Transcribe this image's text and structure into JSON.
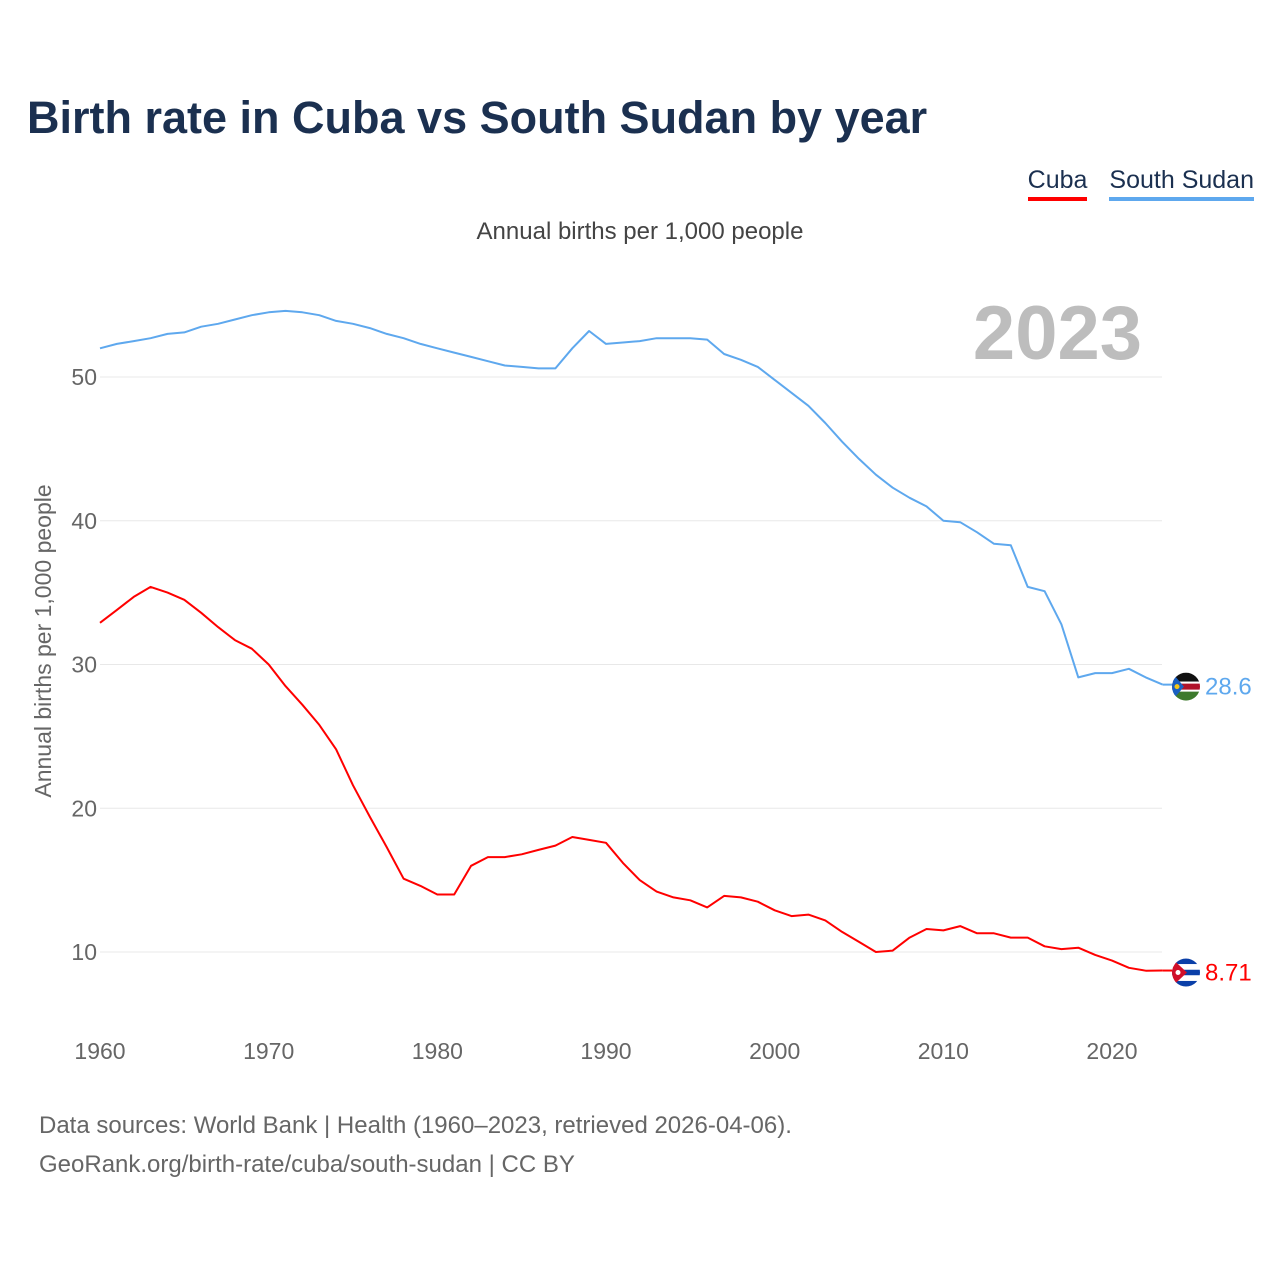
{
  "title": "Birth rate in Cuba vs South Sudan by year",
  "subtitle": "Annual births per 1,000 people",
  "current_year": "2023",
  "footer": {
    "line1": "Data sources: World Bank | Health (1960–2023, retrieved 2026-04-06).",
    "line2": "GeoRank.org/birth-rate/cuba/south-sudan | CC BY"
  },
  "chart_data": {
    "type": "line",
    "title": "Birth rate in Cuba vs South Sudan by year",
    "ylabel": "Annual births per 1,000 people",
    "xlabel": "",
    "xlim": [
      1960,
      2023
    ],
    "ylim": [
      5.5,
      56
    ],
    "grid": true,
    "legend": "top-right",
    "xticks": [
      1960,
      1970,
      1980,
      1990,
      2000,
      2010,
      2020
    ],
    "yticks": [
      10,
      20,
      30,
      40,
      50
    ],
    "x": [
      1960,
      1961,
      1962,
      1963,
      1964,
      1965,
      1966,
      1967,
      1968,
      1969,
      1970,
      1971,
      1972,
      1973,
      1974,
      1975,
      1976,
      1977,
      1978,
      1979,
      1980,
      1981,
      1982,
      1983,
      1984,
      1985,
      1986,
      1987,
      1988,
      1989,
      1990,
      1991,
      1992,
      1993,
      1994,
      1995,
      1996,
      1997,
      1998,
      1999,
      2000,
      2001,
      2002,
      2003,
      2004,
      2005,
      2006,
      2007,
      2008,
      2009,
      2010,
      2011,
      2012,
      2013,
      2014,
      2015,
      2016,
      2017,
      2018,
      2019,
      2020,
      2021,
      2022,
      2023
    ],
    "series": [
      {
        "name": "Cuba",
        "color": "#ff0000",
        "end_label": "8.71",
        "flag": "cuba-flag",
        "values": [
          32.9,
          33.8,
          34.7,
          35.4,
          35.0,
          34.5,
          33.6,
          32.6,
          31.7,
          31.1,
          30.0,
          28.5,
          27.2,
          25.8,
          24.1,
          21.6,
          19.4,
          17.3,
          15.1,
          14.6,
          14.0,
          14.0,
          16.0,
          16.6,
          16.6,
          16.8,
          17.1,
          17.4,
          18.0,
          17.8,
          17.6,
          16.2,
          15.0,
          14.2,
          13.8,
          13.6,
          13.1,
          13.9,
          13.8,
          13.5,
          12.9,
          12.5,
          12.6,
          12.2,
          11.4,
          10.7,
          10.0,
          10.1,
          11.0,
          11.6,
          11.5,
          11.8,
          11.3,
          11.3,
          11.0,
          11.0,
          10.4,
          10.2,
          10.3,
          9.8,
          9.4,
          8.9,
          8.7,
          8.71
        ]
      },
      {
        "name": "South Sudan",
        "color": "#5ea8ee",
        "end_label": "28.6",
        "flag": "south-sudan-flag",
        "values": [
          52.0,
          52.3,
          52.5,
          52.7,
          53.0,
          53.1,
          53.5,
          53.7,
          54.0,
          54.3,
          54.5,
          54.6,
          54.5,
          54.3,
          53.9,
          53.7,
          53.4,
          53.0,
          52.7,
          52.3,
          52.0,
          51.7,
          51.4,
          51.1,
          50.8,
          50.7,
          50.6,
          50.6,
          52.0,
          53.2,
          52.3,
          52.4,
          52.5,
          52.7,
          52.7,
          52.7,
          52.6,
          51.6,
          51.2,
          50.7,
          49.8,
          48.9,
          48.0,
          46.8,
          45.5,
          44.3,
          43.2,
          42.3,
          41.6,
          41.0,
          40.0,
          39.9,
          39.2,
          38.4,
          38.3,
          35.4,
          35.1,
          32.8,
          29.1,
          29.4,
          29.4,
          29.7,
          29.1,
          28.6
        ]
      }
    ]
  }
}
